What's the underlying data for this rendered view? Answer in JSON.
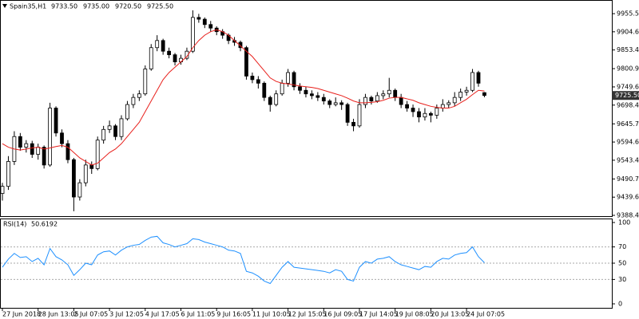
{
  "chart_data": [
    {
      "type": "candlestick",
      "title": "Spain35,H1",
      "header_prices": [
        "9733.50",
        "9735.00",
        "9720.50",
        "9725.50"
      ],
      "categories": [
        "27 Jun 2018",
        null,
        null,
        null,
        null,
        null,
        "28 Jun 13:05",
        null,
        null,
        null,
        null,
        null,
        "2 Jul 07:05",
        null,
        null,
        null,
        null,
        null,
        "3 Jul 12:05",
        null,
        null,
        null,
        null,
        null,
        "4 Jul 17:05",
        null,
        null,
        null,
        null,
        null,
        "6 Jul 11:05",
        null,
        null,
        null,
        null,
        null,
        "9 Jul 16:05",
        null,
        null,
        null,
        null,
        null,
        "11 Jul 10:05",
        null,
        null,
        null,
        null,
        null,
        "12 Jul 15:05",
        null,
        null,
        null,
        null,
        null,
        "16 Jul 09:05",
        null,
        null,
        null,
        null,
        null,
        "17 Jul 14:05",
        null,
        null,
        null,
        null,
        null,
        "19 Jul 08:05",
        null,
        null,
        null,
        null,
        null,
        "20 Jul 13:05",
        null,
        null,
        null,
        null,
        null,
        "24 Jul 07:05",
        null,
        null,
        null
      ],
      "open": [
        9450,
        9470,
        9540,
        9610,
        9580,
        9590,
        9560,
        9580,
        9530,
        9690,
        9620,
        9590,
        9545,
        9440,
        9480,
        9530,
        9520,
        9600,
        9630,
        9640,
        9610,
        9660,
        9700,
        9720,
        9730,
        9800,
        9860,
        9880,
        9850,
        9840,
        9820,
        9830,
        9850,
        9945,
        9940,
        9925,
        9915,
        9905,
        9895,
        9880,
        9875,
        9860,
        9780,
        9770,
        9760,
        9720,
        9700,
        9730,
        9760,
        9790,
        9750,
        9740,
        9730,
        9725,
        9720,
        9710,
        9700,
        9705,
        9700,
        9650,
        9640,
        9700,
        9720,
        9710,
        9725,
        9730,
        9740,
        9720,
        9700,
        9690,
        9680,
        9665,
        9675,
        9670,
        9690,
        9700,
        9705,
        9720,
        9735,
        9740,
        9790,
        9733.5
      ],
      "high": [
        9480,
        9555,
        9625,
        9620,
        9600,
        9598,
        9590,
        9585,
        9705,
        9695,
        9630,
        9600,
        9550,
        9490,
        9545,
        9540,
        9610,
        9640,
        9655,
        9645,
        9670,
        9710,
        9730,
        9740,
        9810,
        9870,
        9895,
        9885,
        9860,
        9845,
        9840,
        9860,
        9965,
        9955,
        9945,
        9935,
        9920,
        9912,
        9900,
        9890,
        9880,
        9865,
        9790,
        9780,
        9765,
        9725,
        9740,
        9770,
        9800,
        9795,
        9760,
        9750,
        9740,
        9735,
        9730,
        9715,
        9720,
        9712,
        9705,
        9660,
        9715,
        9730,
        9725,
        9735,
        9740,
        9775,
        9745,
        9730,
        9710,
        9700,
        9690,
        9690,
        9680,
        9700,
        9715,
        9712,
        9735,
        9745,
        9750,
        9800,
        9795,
        9735
      ],
      "low": [
        9430,
        9460,
        9530,
        9570,
        9565,
        9550,
        9545,
        9520,
        9525,
        9610,
        9580,
        9535,
        9400,
        9430,
        9470,
        9505,
        9515,
        9590,
        9620,
        9600,
        9600,
        9655,
        9690,
        9710,
        9725,
        9795,
        9850,
        9840,
        9830,
        9810,
        9812,
        9825,
        9845,
        9930,
        9915,
        9905,
        9895,
        9885,
        9870,
        9865,
        9850,
        9770,
        9760,
        9745,
        9710,
        9680,
        9695,
        9725,
        9750,
        9740,
        9730,
        9720,
        9715,
        9710,
        9700,
        9690,
        9695,
        9685,
        9640,
        9625,
        9635,
        9690,
        9700,
        9705,
        9715,
        9720,
        9710,
        9690,
        9680,
        9665,
        9650,
        9655,
        9650,
        9660,
        9680,
        9690,
        9695,
        9710,
        9725,
        9735,
        9750,
        9720.5
      ],
      "close": [
        9470,
        9540,
        9610,
        9580,
        9590,
        9560,
        9580,
        9530,
        9690,
        9620,
        9590,
        9545,
        9440,
        9480,
        9530,
        9520,
        9600,
        9630,
        9640,
        9610,
        9660,
        9700,
        9720,
        9730,
        9800,
        9860,
        9880,
        9850,
        9840,
        9820,
        9830,
        9850,
        9945,
        9940,
        9925,
        9915,
        9905,
        9895,
        9880,
        9875,
        9860,
        9780,
        9770,
        9760,
        9720,
        9700,
        9730,
        9760,
        9790,
        9750,
        9740,
        9730,
        9725,
        9720,
        9710,
        9700,
        9705,
        9700,
        9650,
        9640,
        9700,
        9720,
        9710,
        9725,
        9730,
        9740,
        9720,
        9700,
        9690,
        9680,
        9665,
        9675,
        9670,
        9690,
        9700,
        9705,
        9720,
        9735,
        9740,
        9790,
        9760,
        9725.5
      ],
      "moving_average": {
        "color": "#e8201c",
        "values": [
          9590,
          9580,
          9575,
          9572,
          9575,
          9578,
          9580,
          9575,
          9578,
          9582,
          9585,
          9580,
          9565,
          9550,
          9540,
          9530,
          9535,
          9550,
          9565,
          9575,
          9590,
          9610,
          9630,
          9650,
          9680,
          9710,
          9740,
          9770,
          9790,
          9805,
          9820,
          9835,
          9860,
          9880,
          9895,
          9905,
          9910,
          9905,
          9895,
          9880,
          9865,
          9850,
          9835,
          9815,
          9795,
          9775,
          9765,
          9760,
          9758,
          9755,
          9752,
          9750,
          9748,
          9745,
          9740,
          9735,
          9730,
          9725,
          9718,
          9710,
          9705,
          9705,
          9706,
          9708,
          9712,
          9718,
          9720,
          9720,
          9716,
          9712,
          9705,
          9700,
          9695,
          9692,
          9690,
          9690,
          9695,
          9705,
          9715,
          9728,
          9740,
          9738
        ]
      },
      "last_price": {
        "value": 9725.5,
        "label": "9725.50"
      },
      "ylim": [
        9384,
        9985
      ],
      "yticks": [
        9955.55,
        {
          "value": 9904.6,
          "label": "9904.60"
        },
        9853.45,
        9800.95,
        {
          "value": 9749.6,
          "label": "9749.60"
        },
        9698.45,
        {
          "value": 9645.7,
          "label": "9645.70"
        },
        {
          "value": 9594.6,
          "label": "9594.60"
        },
        9543.45,
        9490.75,
        {
          "value": 9439.6,
          "label": "9439.60"
        },
        9388.45
      ]
    },
    {
      "type": "line",
      "title": "RSI(14)",
      "series": [
        {
          "name": "RSI(14)",
          "color": "#1e90ff",
          "values": [
            45,
            55,
            62,
            57,
            58,
            52,
            56,
            48,
            68,
            58,
            54,
            48,
            35,
            42,
            50,
            48,
            60,
            64,
            65,
            60,
            66,
            70,
            72,
            73,
            78,
            82,
            83,
            75,
            73,
            70,
            72,
            74,
            80,
            79,
            76,
            74,
            72,
            70,
            66,
            65,
            62,
            40,
            38,
            34,
            28,
            25,
            35,
            45,
            52,
            45,
            44,
            43,
            42,
            41,
            40,
            38,
            42,
            40,
            30,
            28,
            45,
            52,
            50,
            55,
            56,
            58,
            52,
            48,
            46,
            44,
            42,
            46,
            45,
            52,
            56,
            55,
            60,
            62,
            63,
            70,
            58,
            50.6192
          ]
        }
      ],
      "ylim": [
        0,
        100
      ],
      "yticks": [
        0,
        30,
        50,
        70,
        100
      ]
    }
  ]
}
